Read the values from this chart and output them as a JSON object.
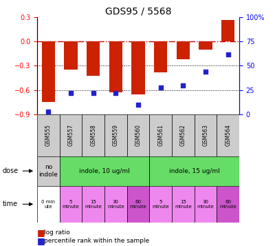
{
  "title": "GDS95 / 5568",
  "samples": [
    "GSM555",
    "GSM557",
    "GSM558",
    "GSM559",
    "GSM560",
    "GSM561",
    "GSM562",
    "GSM563",
    "GSM564"
  ],
  "log_ratios": [
    -0.75,
    -0.35,
    -0.42,
    -0.63,
    -0.65,
    -0.38,
    -0.22,
    -0.1,
    0.27
  ],
  "percentile_ranks": [
    3,
    22,
    22,
    22,
    10,
    28,
    30,
    44,
    62
  ],
  "ylim_left": [
    -0.9,
    0.3
  ],
  "ylim_right": [
    0,
    100
  ],
  "right_ticks": [
    0,
    25,
    50,
    75,
    100
  ],
  "left_ticks": [
    -0.9,
    -0.6,
    -0.3,
    0.0,
    0.3
  ],
  "bar_color": "#cc2200",
  "dot_color": "#2222cc",
  "zero_line_color": "#cc0000",
  "dotted_line_color": "#000000",
  "background_color": "#ffffff",
  "gsm_bg": "#cccccc",
  "dose_no_color": "#cccccc",
  "dose_10_color": "#66dd66",
  "dose_15_color": "#66dd66",
  "time_0_color": "#ffffff",
  "time_5_color": "#ee88ee",
  "time_15_color": "#ee88ee",
  "time_30_color": "#ee88ee",
  "time_60_color": "#cc55cc",
  "legend_red": "#cc2200",
  "legend_blue": "#2222cc",
  "right_tick_labels": [
    "0",
    "25",
    "50",
    "75",
    "100%"
  ]
}
